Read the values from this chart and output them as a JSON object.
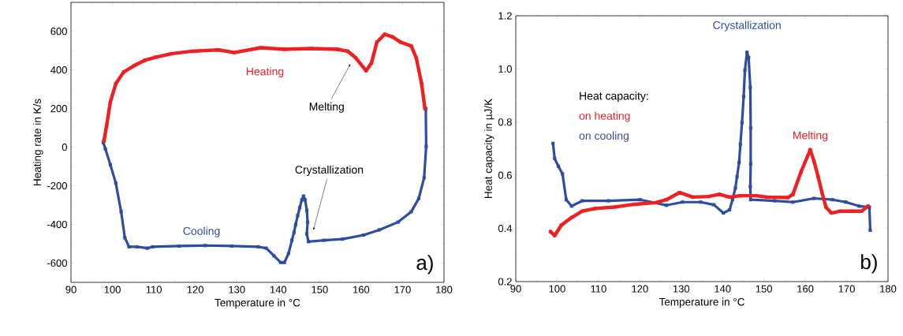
{
  "chart_data": [
    {
      "type": "line",
      "xlabel": "Temperature in °C",
      "ylabel": "Heating rate in K/s",
      "xlim": [
        90,
        180
      ],
      "ylim": [
        -700,
        750
      ],
      "xticks": [
        90,
        100,
        110,
        120,
        130,
        140,
        150,
        160,
        170,
        180
      ],
      "yticks": [
        -600,
        -400,
        -200,
        0,
        200,
        400,
        600
      ],
      "grid": false,
      "marker": "square",
      "legend": false,
      "series": [
        {
          "name": "Heating",
          "color": "#ee2024",
          "x": [
            97.95,
            98.6,
            99.5,
            100.8,
            102.7,
            105.3,
            107.8,
            110.4,
            114.2,
            119.3,
            125.6,
            129.4,
            135.8,
            141.5,
            147.9,
            154.2,
            156.8,
            158.7,
            161.2,
            162.5,
            163.8,
            165.7,
            167.6,
            169.5,
            172.1,
            173.3,
            174.6,
            175.4
          ],
          "values": [
            31,
            112,
            234,
            328,
            389,
            423,
            450,
            466,
            484,
            497,
            504,
            490,
            515,
            507,
            511,
            507,
            497,
            463,
            396,
            436,
            544,
            585,
            571,
            544,
            524,
            463,
            328,
            200
          ]
        },
        {
          "name": "Cooling",
          "color": "#2e4d9e",
          "x": [
            175.6,
            175.7,
            175.2,
            173.9,
            172.1,
            168.9,
            164.4,
            160.6,
            155.5,
            151.1,
            147.3,
            146.9,
            147.1,
            146.9,
            146.5,
            146.1,
            145.7,
            145.2,
            144.7,
            144.2,
            143.8,
            143.3,
            142.5,
            141.5,
            140.6,
            139.0,
            137.1,
            135.2,
            128.8,
            122.4,
            116.1,
            109.7,
            108.4,
            105.9,
            104.0,
            103.0,
            102.1,
            100.8,
            99.5,
            98.3,
            97.8
          ],
          "values": [
            200,
            4,
            -158,
            -266,
            -334,
            -388,
            -428,
            -455,
            -476,
            -482,
            -489,
            -449,
            -388,
            -327,
            -273,
            -253,
            -273,
            -313,
            -354,
            -401,
            -442,
            -482,
            -550,
            -597,
            -597,
            -563,
            -523,
            -516,
            -512,
            -509,
            -512,
            -516,
            -523,
            -516,
            -516,
            -469,
            -334,
            -185,
            -91,
            -9,
            24
          ]
        }
      ],
      "annotations": [
        {
          "text": "Melting",
          "x": 157.4,
          "y": 430
        },
        {
          "text": "Crystallization",
          "x": 148.5,
          "y": -428
        },
        "a)"
      ]
    },
    {
      "type": "line",
      "xlabel": "Temperature in °C",
      "ylabel": "Heat capacity in µJ/K",
      "xlim": [
        90,
        180
      ],
      "ylim": [
        0.2,
        1.2
      ],
      "xticks": [
        90,
        100,
        110,
        120,
        130,
        140,
        150,
        160,
        170,
        180
      ],
      "yticks": [
        {
          "value": 0.2,
          "label": "0.2"
        },
        {
          "value": 0.4,
          "label": "0.4"
        },
        {
          "value": 0.6,
          "label": "0.6"
        },
        {
          "value": 0.8,
          "label": "0.8"
        },
        {
          "value": 1.0,
          "label": "1.0"
        },
        {
          "value": 1.2,
          "label": "1.2"
        }
      ],
      "grid": false,
      "marker": "square",
      "legend": false,
      "legend_title": "Heat capacity:",
      "series": [
        {
          "name": "on heating",
          "color": "#ee2024",
          "x": [
            98.4,
            99.4,
            101.0,
            103.5,
            106.1,
            109.2,
            113.7,
            118.8,
            123.9,
            126.4,
            129.6,
            132.8,
            136.6,
            139.2,
            141.7,
            144.3,
            148.1,
            150.7,
            155.8,
            157.0,
            159.0,
            161.2,
            162.1,
            163.1,
            164.0,
            165.0,
            166.3,
            168.5,
            171.1,
            173.6,
            175.2
          ],
          "values": [
            0.388,
            0.373,
            0.412,
            0.441,
            0.465,
            0.475,
            0.48,
            0.491,
            0.497,
            0.508,
            0.535,
            0.518,
            0.52,
            0.528,
            0.518,
            0.523,
            0.523,
            0.518,
            0.516,
            0.528,
            0.614,
            0.696,
            0.653,
            0.595,
            0.537,
            0.48,
            0.458,
            0.465,
            0.465,
            0.465,
            0.484
          ]
        },
        {
          "name": "on cooling",
          "color": "#2e4d9e",
          "x": [
            175.7,
            175.5,
            173.0,
            169.8,
            166.6,
            162.1,
            157.0,
            152.6,
            146.8,
            146.7,
            146.8,
            146.8,
            146.7,
            146.3,
            145.9,
            145.4,
            145.1,
            144.7,
            144.3,
            144.0,
            143.5,
            143.1,
            142.4,
            141.7,
            140.2,
            137.9,
            134.7,
            130.3,
            126.4,
            120.1,
            112.4,
            106.1,
            103.5,
            102.2,
            101.3,
            100.3,
            99.4,
            99.0
          ],
          "values": [
            0.393,
            0.48,
            0.484,
            0.499,
            0.508,
            0.513,
            0.499,
            0.504,
            0.508,
            0.557,
            0.643,
            0.778,
            0.931,
            1.043,
            1.063,
            0.995,
            0.896,
            0.798,
            0.716,
            0.648,
            0.595,
            0.552,
            0.508,
            0.47,
            0.458,
            0.489,
            0.499,
            0.499,
            0.487,
            0.508,
            0.504,
            0.504,
            0.484,
            0.508,
            0.605,
            0.634,
            0.663,
            0.72
          ]
        }
      ],
      "annotations": [
        {
          "text": "Melting",
          "x": 161.2,
          "y": 0.696
        },
        {
          "text": "Crystallization",
          "x": 145.9,
          "y": 1.063
        },
        "b)"
      ]
    }
  ]
}
